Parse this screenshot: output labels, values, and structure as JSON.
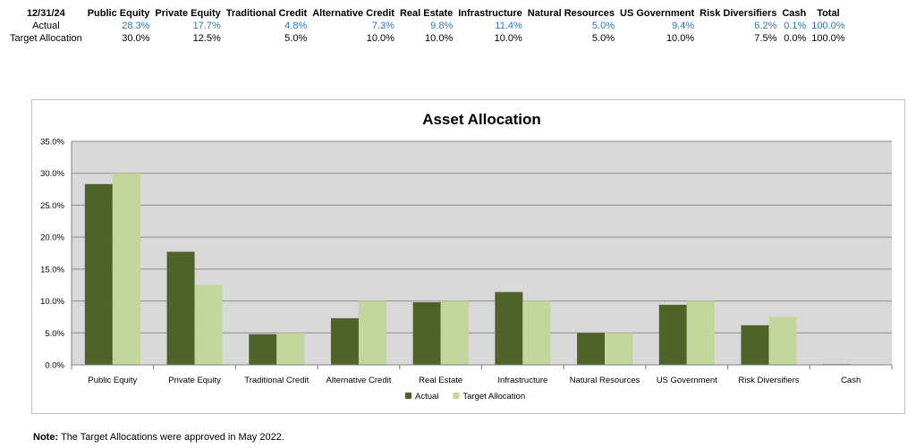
{
  "table": {
    "headers": [
      "12/31/24",
      "Public Equity",
      "Private Equity",
      "Traditional Credit",
      "Alternative Credit",
      "Real Estate",
      "Infrastructure",
      "Natural Resources",
      "US Government",
      "Risk Diversifiers",
      "Cash",
      "Total"
    ],
    "rows": [
      {
        "label": "Actual",
        "values": [
          "28.3%",
          "17.7%",
          "4.8%",
          "7.3%",
          "9.8%",
          "11.4%",
          "5.0%",
          "9.4%",
          "6.2%",
          "0.1%",
          "100.0%"
        ]
      },
      {
        "label": "Target Allocation",
        "values": [
          "30.0%",
          "12.5%",
          "5.0%",
          "10.0%",
          "10.0%",
          "10.0%",
          "5.0%",
          "10.0%",
          "7.5%",
          "0.0%",
          "100.0%"
        ]
      }
    ]
  },
  "note": {
    "label": "Note:",
    "text": "The Target Allocations were approved in May 2022."
  },
  "chart_data": {
    "type": "bar",
    "title": "Asset Allocation",
    "xlabel": "",
    "ylabel": "",
    "categories": [
      "Public Equity",
      "Private Equity",
      "Traditional Credit",
      "Alternative Credit",
      "Real Estate",
      "Infrastructure",
      "Natural Resources",
      "US Government",
      "Risk Diversifiers",
      "Cash"
    ],
    "series": [
      {
        "name": "Actual",
        "values": [
          28.3,
          17.7,
          4.8,
          7.3,
          9.8,
          11.4,
          5.0,
          9.4,
          6.2,
          0.1
        ],
        "color": "#4f6228"
      },
      {
        "name": "Target Allocation",
        "values": [
          30.0,
          12.5,
          5.0,
          10.0,
          10.0,
          10.0,
          5.0,
          10.0,
          7.5,
          0.0
        ],
        "color": "#c3d69b"
      }
    ],
    "ylim": [
      0,
      35
    ],
    "yticks": [
      "0.0%",
      "5.0%",
      "10.0%",
      "15.0%",
      "20.0%",
      "25.0%",
      "30.0%",
      "35.0%"
    ],
    "grid": true,
    "plot_background": "#d9d9d9",
    "legend_position": "bottom"
  }
}
